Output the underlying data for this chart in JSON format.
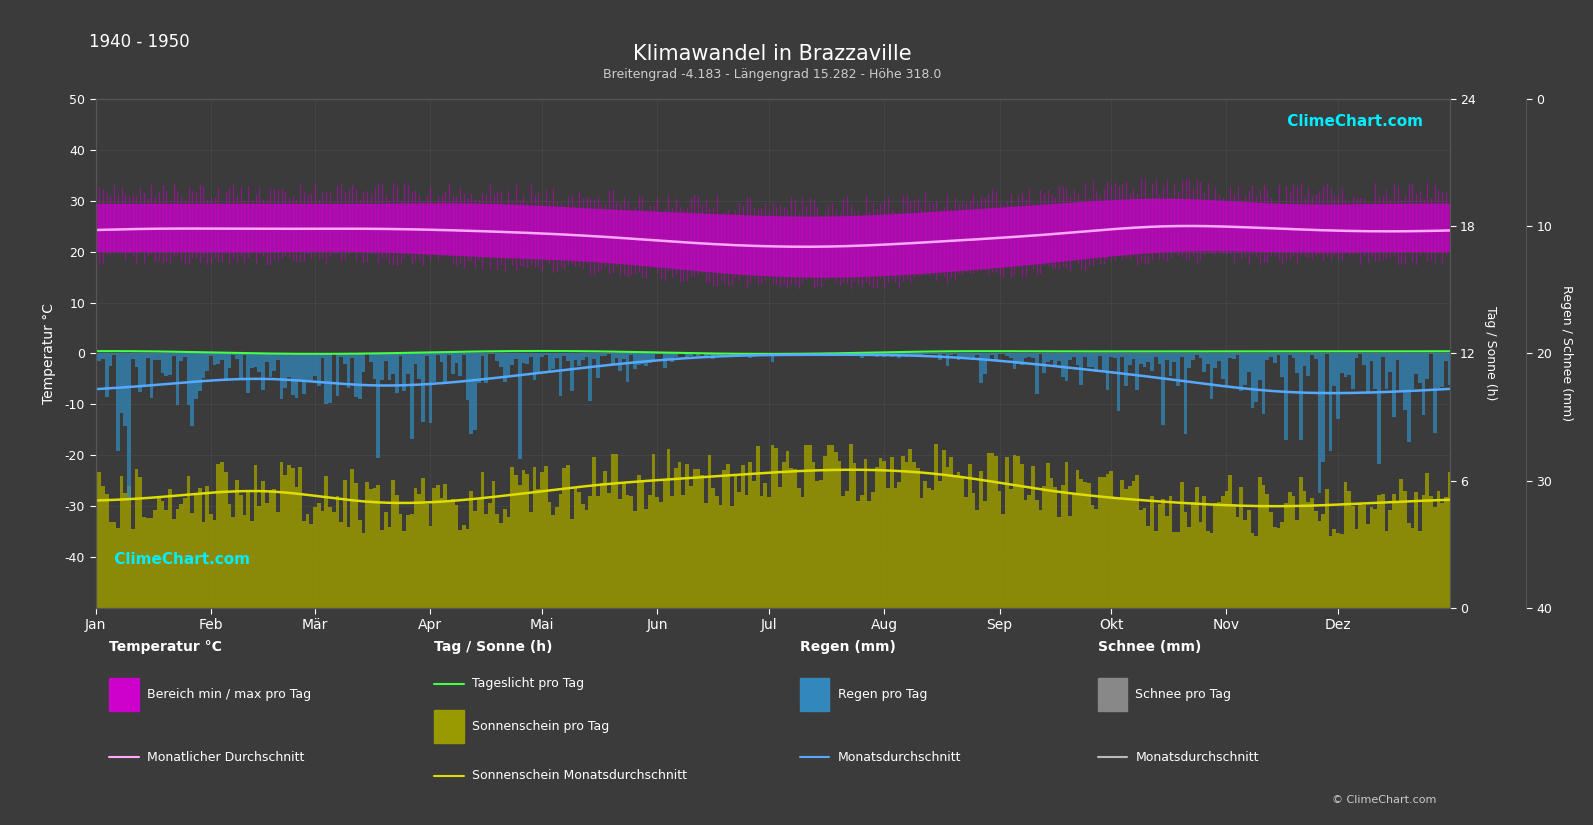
{
  "title": "Klimawandel in Brazzaville",
  "subtitle": "Breitengrad -4.183 - Längengrad 15.282 - Höhe 318.0",
  "year_range": "1940 - 1950",
  "background_color": "#3b3b3b",
  "plot_bg_color": "#3b3b3b",
  "months": [
    "Jan",
    "Feb",
    "Mär",
    "Apr",
    "Mai",
    "Jun",
    "Jul",
    "Aug",
    "Sep",
    "Okt",
    "Nov",
    "Dez"
  ],
  "month_centers": [
    15,
    46,
    74,
    105,
    135,
    166,
    196,
    227,
    258,
    288,
    319,
    349
  ],
  "month_tick_pos": [
    0,
    31,
    59,
    90,
    120,
    151,
    181,
    212,
    243,
    273,
    304,
    334
  ],
  "temp_min_monthly": [
    20.0,
    20.0,
    20.0,
    19.0,
    18.0,
    16.0,
    15.0,
    16.0,
    18.0,
    20.0,
    20.0,
    20.0
  ],
  "temp_max_monthly": [
    29.5,
    29.5,
    29.5,
    29.5,
    28.5,
    27.5,
    27.0,
    28.0,
    29.5,
    30.5,
    29.5,
    29.5
  ],
  "temp_mean_monthly": [
    24.5,
    24.5,
    24.5,
    24.0,
    23.0,
    21.5,
    21.0,
    22.0,
    23.5,
    25.0,
    24.5,
    24.0
  ],
  "sunshine_monthly_avg": [
    5.2,
    5.5,
    5.0,
    5.2,
    5.8,
    6.2,
    6.5,
    6.3,
    5.5,
    5.0,
    4.8,
    5.0
  ],
  "daylight_monthly": [
    12.1,
    12.0,
    12.0,
    12.1,
    12.1,
    12.0,
    12.0,
    12.1,
    12.1,
    12.1,
    12.1,
    12.1
  ],
  "rain_monthly_avg_mm": [
    5.0,
    4.0,
    5.0,
    4.0,
    2.0,
    0.5,
    0.2,
    0.5,
    2.0,
    4.0,
    6.0,
    6.0
  ],
  "color_temp_fill": "#cc00cc",
  "color_sunshine_fill": "#999900",
  "color_rain_fill": "#3388bb",
  "color_snow_fill": "#888888",
  "color_temp_mean_line": "#ffaaff",
  "color_sunshine_mean_line": "#dddd00",
  "color_daylight_line": "#44ff44",
  "color_rain_mean_line": "#55aaff",
  "color_snow_mean_line": "#bbbbbb",
  "grid_color": "#555555",
  "text_color": "#ffffff",
  "label_color": "#cccccc",
  "logo_color_cyan": "#00eeff",
  "logo_color_purple": "#cc00cc"
}
